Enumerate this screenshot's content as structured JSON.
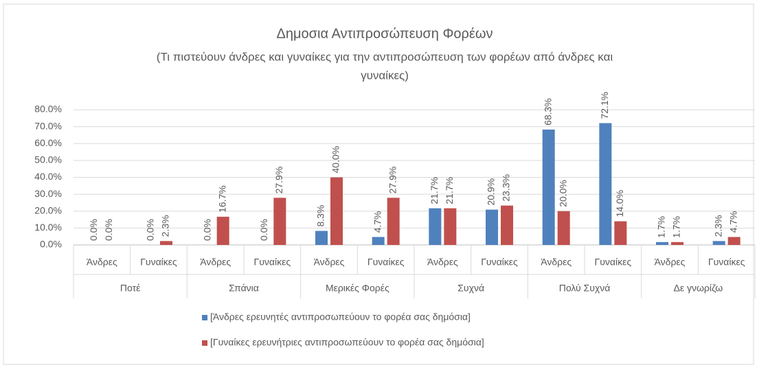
{
  "chart_data": {
    "type": "bar",
    "title": "Δημοσια Αντιπροσώπευση Φορέων",
    "subtitle": [
      "(Τι πιστεύουν άνδρες και γυναίκες για την αντιπροσώπευση των φορέων από άνδρες και",
      "γυναίκες)"
    ],
    "groups": [
      "Ποτέ",
      "Σπάνια",
      "Μερικές Φορές",
      "Συχνά",
      "Πολύ Συχνά",
      "Δε γνωρίζω"
    ],
    "categories": [
      "Άνδρες",
      "Γυναίκες",
      "Άνδρες",
      "Γυναίκες",
      "Άνδρες",
      "Γυναίκες",
      "Άνδρες",
      "Γυναίκες",
      "Άνδρες",
      "Γυναίκες",
      "Άνδρες",
      "Γυναίκες"
    ],
    "series": [
      {
        "name": "[Άνδρες ερευνητές αντιπροσωπεύουν το φορέα σας δημόσια]",
        "color": "#4f81bd",
        "values": [
          0,
          0,
          0,
          0,
          8.3,
          4.7,
          21.7,
          20.9,
          68.3,
          72.1,
          1.7,
          2.3
        ],
        "value_labels": [
          "0.0%",
          "0.0%",
          "0.0%",
          "0.0%",
          "8.3%",
          "4.7%",
          "21.7%",
          "20.9%",
          "68.3%",
          "72.1%",
          "1.7%",
          "2.3%"
        ]
      },
      {
        "name": "[Γυναίκες ερευνήτριες αντιπροσωπεύουν το φορέα σας δημόσια]",
        "color": "#c0504d",
        "values": [
          0,
          2.3,
          16.7,
          27.9,
          40.0,
          27.9,
          21.7,
          23.3,
          20.0,
          14.0,
          1.7,
          4.7
        ],
        "value_labels": [
          "0.0%",
          "2.3%",
          "16.7%",
          "27.9%",
          "40.0%",
          "27.9%",
          "21.7%",
          "23.3%",
          "20.0%",
          "14.0%",
          "1.7%",
          "4.7%"
        ]
      }
    ],
    "ylim": [
      0,
      80
    ],
    "yticks": [
      {
        "value": 0,
        "label": "0.0%"
      },
      {
        "value": 10,
        "label": "10.0%"
      },
      {
        "value": 20,
        "label": "20.0%"
      },
      {
        "value": 30,
        "label": "30.0%"
      },
      {
        "value": 40,
        "label": "40.0%"
      },
      {
        "value": 50,
        "label": "50.0%"
      },
      {
        "value": 60,
        "label": "60.0%"
      },
      {
        "value": 70,
        "label": "70.0%"
      },
      {
        "value": 80,
        "label": "80.0%"
      }
    ],
    "grid": true,
    "legend": "bottom"
  }
}
